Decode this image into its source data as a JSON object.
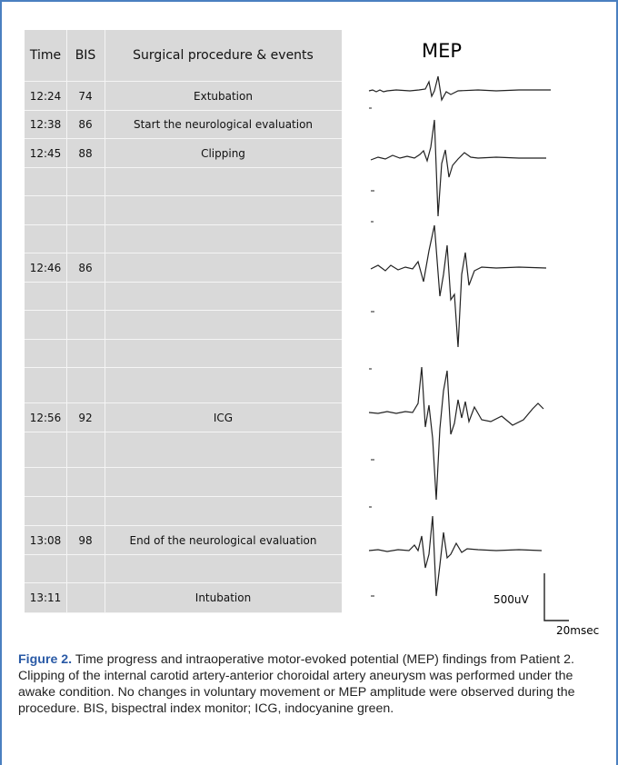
{
  "table": {
    "headers": {
      "time": "Time",
      "bis": "BIS",
      "event": "Surgical procedure & events"
    },
    "rows": [
      {
        "time": "12:24",
        "bis": "74",
        "event": "Extubation"
      },
      {
        "time": "12:38",
        "bis": "86",
        "event": "Start the  neurological evaluation"
      },
      {
        "time": "12:45",
        "bis": "88",
        "event": "Clipping"
      },
      {
        "time": "",
        "bis": "",
        "event": ""
      },
      {
        "time": "",
        "bis": "",
        "event": ""
      },
      {
        "time": "",
        "bis": "",
        "event": ""
      },
      {
        "time": "12:46",
        "bis": "86",
        "event": ""
      },
      {
        "time": "",
        "bis": "",
        "event": ""
      },
      {
        "time": "",
        "bis": "",
        "event": ""
      },
      {
        "time": "",
        "bis": "",
        "event": ""
      },
      {
        "time": "",
        "bis": "",
        "event": ""
      },
      {
        "time": "12:56",
        "bis": "92",
        "event": "ICG"
      },
      {
        "time": "",
        "bis": "",
        "event": ""
      },
      {
        "time": "",
        "bis": "",
        "event": ""
      },
      {
        "time": "",
        "bis": "",
        "event": ""
      },
      {
        "time": "13:08",
        "bis": "98",
        "event": "End of the neurological evaluation"
      },
      {
        "time": "",
        "bis": "",
        "event": ""
      },
      {
        "time": "13:11",
        "bis": "",
        "event": "Intubation"
      }
    ]
  },
  "mep": {
    "title": "MEP",
    "scale_amplitude": "500uV",
    "scale_time": "20msec"
  },
  "caption": {
    "figure_label": "Figure 2.",
    "text": " Time progress and intraoperative motor-evoked potential (MEP) findings from Patient 2. Clipping of the internal carotid artery-anterior choroidal artery aneurysm was performed under the awake condition. No changes in voluntary movement or MEP amplitude were observed during the procedure. BIS, bispectral index monitor; ICG, indocyanine green."
  },
  "colors": {
    "frame": "#4a7fc0",
    "table_bg": "#d9d9d9",
    "figure_label": "#2a5aa6"
  }
}
